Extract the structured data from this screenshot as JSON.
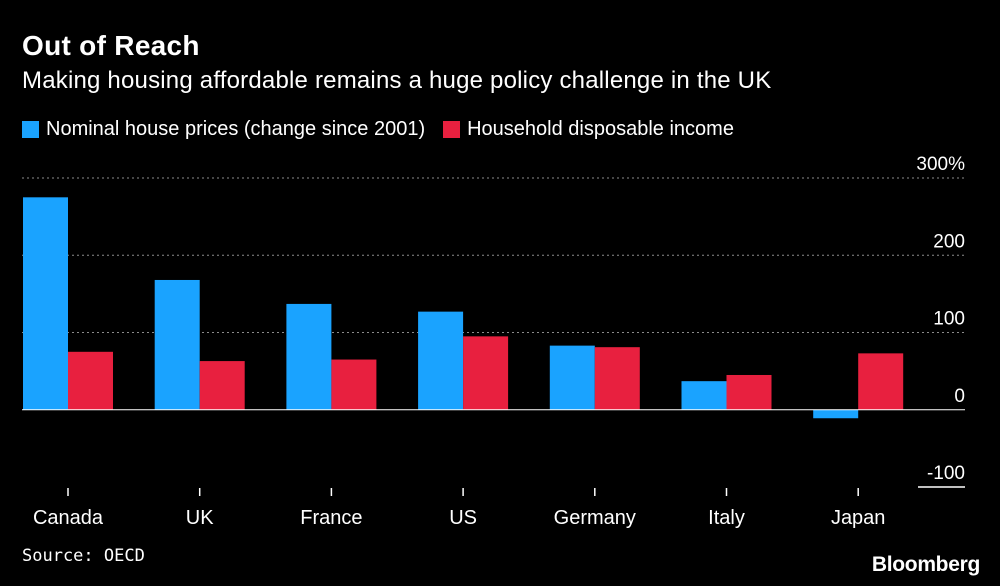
{
  "header": {
    "title": "Out of Reach",
    "subtitle": "Making housing affordable remains a huge policy challenge in the UK"
  },
  "footer": {
    "source": "Source: OECD",
    "brand": "Bloomberg"
  },
  "colors": {
    "house_prices": "#1aa3ff",
    "income": "#e8203f",
    "grid": "#8c8c8c",
    "text": "#ffffff"
  },
  "chart_data": {
    "type": "bar",
    "title": "Out of Reach",
    "subtitle": "Making housing affordable remains a huge policy challenge in the UK",
    "categories": [
      "Canada",
      "UK",
      "France",
      "US",
      "Germany",
      "Italy",
      "Japan"
    ],
    "series": [
      {
        "name": "Nominal house prices (change since 2001)",
        "values": [
          275,
          168,
          137,
          127,
          83,
          37,
          -11
        ]
      },
      {
        "name": "Household disposable income",
        "values": [
          75,
          63,
          65,
          95,
          81,
          45,
          73
        ]
      }
    ],
    "y_ticks": [
      -100,
      0,
      100,
      200,
      300
    ],
    "y_tick_labels": [
      "-100",
      "0",
      "100",
      "200",
      "300%"
    ],
    "ylim": [
      -100,
      300
    ],
    "ylabel": "",
    "xlabel": "",
    "grid": true,
    "legend_position": "top-left"
  }
}
